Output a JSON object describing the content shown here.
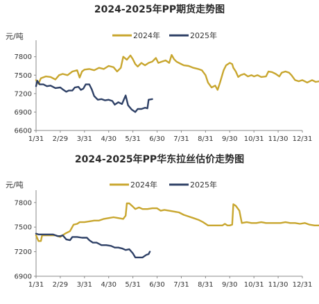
{
  "chart_data": [
    {
      "type": "line",
      "title": "2024-2025年PP期货走势图",
      "ylabel": "元/吨",
      "ylim": [
        6600,
        8000
      ],
      "yticks": [
        6600,
        6900,
        7200,
        7500,
        7800
      ],
      "x_categories": [
        "1/31",
        "2/29",
        "3/31",
        "4/30",
        "5/31",
        "6/30",
        "7/31",
        "8/31",
        "9/30",
        "10/31",
        "11/30",
        "12/31"
      ],
      "legend_position": "top-center",
      "series": [
        {
          "name": "2024年",
          "color": "#c8a62e",
          "points": [
            [
              0.0,
              7420
            ],
            [
              0.1,
              7360
            ],
            [
              0.2,
              7450
            ],
            [
              0.4,
              7480
            ],
            [
              0.6,
              7470
            ],
            [
              0.8,
              7430
            ],
            [
              0.95,
              7500
            ],
            [
              1.1,
              7520
            ],
            [
              1.3,
              7500
            ],
            [
              1.5,
              7560
            ],
            [
              1.7,
              7580
            ],
            [
              1.8,
              7460
            ],
            [
              1.9,
              7560
            ],
            [
              2.0,
              7590
            ],
            [
              2.2,
              7600
            ],
            [
              2.4,
              7580
            ],
            [
              2.6,
              7620
            ],
            [
              2.8,
              7600
            ],
            [
              3.0,
              7650
            ],
            [
              3.2,
              7630
            ],
            [
              3.35,
              7560
            ],
            [
              3.5,
              7620
            ],
            [
              3.6,
              7800
            ],
            [
              3.75,
              7750
            ],
            [
              3.9,
              7820
            ],
            [
              4.0,
              7760
            ],
            [
              4.1,
              7680
            ],
            [
              4.2,
              7640
            ],
            [
              4.35,
              7700
            ],
            [
              4.5,
              7660
            ],
            [
              4.65,
              7700
            ],
            [
              4.8,
              7720
            ],
            [
              4.95,
              7780
            ],
            [
              5.05,
              7700
            ],
            [
              5.2,
              7720
            ],
            [
              5.35,
              7740
            ],
            [
              5.5,
              7700
            ],
            [
              5.6,
              7830
            ],
            [
              5.7,
              7760
            ],
            [
              5.8,
              7720
            ],
            [
              5.95,
              7690
            ],
            [
              6.1,
              7660
            ],
            [
              6.3,
              7650
            ],
            [
              6.5,
              7620
            ],
            [
              6.7,
              7600
            ],
            [
              6.85,
              7580
            ],
            [
              7.0,
              7500
            ],
            [
              7.1,
              7380
            ],
            [
              7.25,
              7300
            ],
            [
              7.4,
              7330
            ],
            [
              7.5,
              7260
            ],
            [
              7.6,
              7380
            ],
            [
              7.75,
              7580
            ],
            [
              7.85,
              7660
            ],
            [
              8.0,
              7700
            ],
            [
              8.1,
              7680
            ],
            [
              8.15,
              7620
            ],
            [
              8.25,
              7560
            ],
            [
              8.35,
              7470
            ],
            [
              8.45,
              7500
            ],
            [
              8.6,
              7520
            ],
            [
              8.75,
              7480
            ],
            [
              8.9,
              7500
            ],
            [
              9.0,
              7480
            ],
            [
              9.15,
              7500
            ],
            [
              9.3,
              7470
            ],
            [
              9.5,
              7480
            ],
            [
              9.6,
              7560
            ],
            [
              9.75,
              7550
            ],
            [
              9.9,
              7520
            ],
            [
              10.05,
              7480
            ],
            [
              10.15,
              7540
            ],
            [
              10.3,
              7560
            ],
            [
              10.45,
              7540
            ],
            [
              10.55,
              7500
            ],
            [
              10.7,
              7420
            ],
            [
              10.85,
              7400
            ],
            [
              11.0,
              7420
            ],
            [
              11.2,
              7380
            ],
            [
              11.4,
              7420
            ],
            [
              11.55,
              7390
            ],
            [
              11.7,
              7400
            ],
            [
              11.8,
              7460
            ]
          ]
        },
        {
          "name": "2025年",
          "color": "#2e4066",
          "points": [
            [
              0.0,
              7320
            ],
            [
              0.05,
              7410
            ],
            [
              0.15,
              7350
            ],
            [
              0.3,
              7350
            ],
            [
              0.45,
              7320
            ],
            [
              0.6,
              7330
            ],
            [
              0.8,
              7290
            ],
            [
              1.0,
              7300
            ],
            [
              1.1,
              7270
            ],
            [
              1.25,
              7230
            ],
            [
              1.35,
              7250
            ],
            [
              1.5,
              7250
            ],
            [
              1.6,
              7300
            ],
            [
              1.75,
              7310
            ],
            [
              1.85,
              7260
            ],
            [
              1.95,
              7280
            ],
            [
              2.05,
              7350
            ],
            [
              2.2,
              7350
            ],
            [
              2.3,
              7270
            ],
            [
              2.4,
              7160
            ],
            [
              2.55,
              7100
            ],
            [
              2.7,
              7110
            ],
            [
              2.85,
              7090
            ],
            [
              3.0,
              7100
            ],
            [
              3.15,
              7080
            ],
            [
              3.25,
              7020
            ],
            [
              3.4,
              7060
            ],
            [
              3.55,
              7030
            ],
            [
              3.7,
              7170
            ],
            [
              3.8,
              7010
            ],
            [
              3.95,
              6940
            ],
            [
              4.1,
              6900
            ],
            [
              4.2,
              6950
            ],
            [
              4.35,
              6950
            ],
            [
              4.5,
              6970
            ],
            [
              4.6,
              6960
            ],
            [
              4.65,
              7100
            ],
            [
              4.8,
              7110
            ]
          ]
        }
      ]
    },
    {
      "type": "line",
      "title": "2024-2025年PP华东拉丝估价走势图",
      "ylabel": "元/吨",
      "ylim": [
        6900,
        7900
      ],
      "yticks": [
        6900,
        7200,
        7500,
        7800
      ],
      "x_categories": [
        "1/31",
        "2/29",
        "3/31",
        "4/30",
        "5/31",
        "6/30",
        "7/31",
        "8/31",
        "9/30",
        "10/31",
        "11/30",
        "12/31"
      ],
      "legend_position": "top-center",
      "series": [
        {
          "name": "2024年",
          "color": "#c8a62e",
          "points": [
            [
              0.0,
              7400
            ],
            [
              0.1,
              7330
            ],
            [
              0.2,
              7330
            ],
            [
              0.25,
              7400
            ],
            [
              0.4,
              7400
            ],
            [
              0.6,
              7400
            ],
            [
              0.8,
              7400
            ],
            [
              1.0,
              7380
            ],
            [
              1.2,
              7420
            ],
            [
              1.4,
              7450
            ],
            [
              1.55,
              7530
            ],
            [
              1.7,
              7540
            ],
            [
              1.8,
              7560
            ],
            [
              2.0,
              7560
            ],
            [
              2.2,
              7570
            ],
            [
              2.4,
              7580
            ],
            [
              2.6,
              7580
            ],
            [
              2.8,
              7600
            ],
            [
              3.0,
              7610
            ],
            [
              3.2,
              7620
            ],
            [
              3.4,
              7610
            ],
            [
              3.6,
              7600
            ],
            [
              3.7,
              7640
            ],
            [
              3.75,
              7790
            ],
            [
              3.85,
              7790
            ],
            [
              4.0,
              7750
            ],
            [
              4.1,
              7720
            ],
            [
              4.25,
              7740
            ],
            [
              4.4,
              7720
            ],
            [
              4.6,
              7720
            ],
            [
              4.8,
              7730
            ],
            [
              5.0,
              7730
            ],
            [
              5.15,
              7700
            ],
            [
              5.3,
              7710
            ],
            [
              5.5,
              7700
            ],
            [
              5.7,
              7690
            ],
            [
              5.9,
              7680
            ],
            [
              6.1,
              7650
            ],
            [
              6.3,
              7630
            ],
            [
              6.5,
              7610
            ],
            [
              6.7,
              7590
            ],
            [
              6.9,
              7560
            ],
            [
              7.1,
              7520
            ],
            [
              7.3,
              7520
            ],
            [
              7.5,
              7520
            ],
            [
              7.7,
              7520
            ],
            [
              7.8,
              7540
            ],
            [
              7.9,
              7520
            ],
            [
              8.0,
              7520
            ],
            [
              8.1,
              7530
            ],
            [
              8.15,
              7780
            ],
            [
              8.25,
              7760
            ],
            [
              8.4,
              7700
            ],
            [
              8.5,
              7550
            ],
            [
              8.7,
              7560
            ],
            [
              8.9,
              7550
            ],
            [
              9.1,
              7550
            ],
            [
              9.3,
              7560
            ],
            [
              9.5,
              7550
            ],
            [
              9.7,
              7550
            ],
            [
              9.9,
              7550
            ],
            [
              10.1,
              7550
            ],
            [
              10.3,
              7560
            ],
            [
              10.5,
              7550
            ],
            [
              10.7,
              7550
            ],
            [
              10.9,
              7540
            ],
            [
              11.1,
              7550
            ],
            [
              11.3,
              7530
            ],
            [
              11.5,
              7520
            ],
            [
              11.7,
              7520
            ],
            [
              11.8,
              7520
            ]
          ]
        },
        {
          "name": "2025年",
          "color": "#2e4066",
          "points": [
            [
              0.0,
              7420
            ],
            [
              0.1,
              7410
            ],
            [
              0.3,
              7410
            ],
            [
              0.5,
              7410
            ],
            [
              0.7,
              7410
            ],
            [
              0.9,
              7390
            ],
            [
              1.0,
              7390
            ],
            [
              1.1,
              7400
            ],
            [
              1.25,
              7350
            ],
            [
              1.4,
              7340
            ],
            [
              1.5,
              7380
            ],
            [
              1.7,
              7380
            ],
            [
              1.9,
              7370
            ],
            [
              2.1,
              7370
            ],
            [
              2.2,
              7340
            ],
            [
              2.35,
              7310
            ],
            [
              2.5,
              7310
            ],
            [
              2.7,
              7280
            ],
            [
              2.9,
              7280
            ],
            [
              3.1,
              7270
            ],
            [
              3.25,
              7250
            ],
            [
              3.4,
              7250
            ],
            [
              3.55,
              7240
            ],
            [
              3.7,
              7220
            ],
            [
              3.85,
              7230
            ],
            [
              4.0,
              7180
            ],
            [
              4.1,
              7130
            ],
            [
              4.25,
              7130
            ],
            [
              4.4,
              7130
            ],
            [
              4.55,
              7160
            ],
            [
              4.65,
              7170
            ],
            [
              4.7,
              7200
            ]
          ]
        }
      ]
    }
  ]
}
